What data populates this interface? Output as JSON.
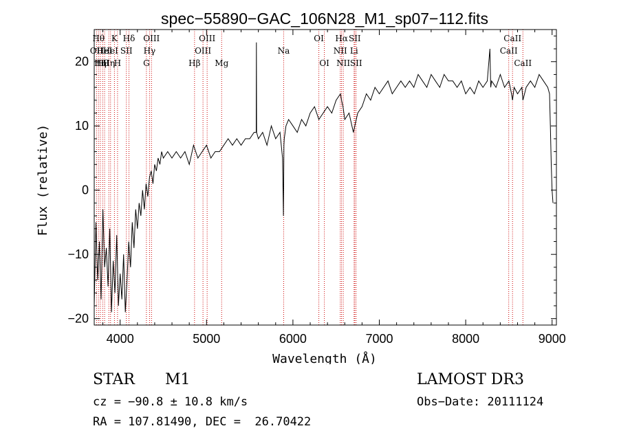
{
  "chart_data": {
    "type": "line",
    "title": "spec−55890−GAC_106N28_M1_sp07−112.fits",
    "xlabel": "Wavelength (Å)",
    "ylabel": "Flux (relative)",
    "xlim": [
      3700,
      9050
    ],
    "ylim": [
      -21,
      25
    ],
    "xticks": [
      4000,
      5000,
      6000,
      7000,
      8000,
      9000
    ],
    "xtick_labels": [
      "4000",
      "5000",
      "6000",
      "7000",
      "8000",
      "9000"
    ],
    "yticks": [
      -20,
      -10,
      0,
      10,
      20
    ],
    "ytick_labels": [
      "−20",
      "−10",
      "0",
      "10",
      "20"
    ],
    "series": [
      {
        "name": "flux",
        "x": [
          3700,
          3720,
          3740,
          3760,
          3780,
          3800,
          3820,
          3840,
          3860,
          3880,
          3900,
          3920,
          3940,
          3960,
          3980,
          4000,
          4020,
          4040,
          4060,
          4080,
          4100,
          4120,
          4140,
          4160,
          4180,
          4200,
          4220,
          4240,
          4260,
          4280,
          4300,
          4320,
          4340,
          4360,
          4380,
          4400,
          4420,
          4440,
          4460,
          4480,
          4500,
          4550,
          4600,
          4650,
          4700,
          4750,
          4800,
          4850,
          4900,
          4950,
          5000,
          5050,
          5100,
          5150,
          5200,
          5250,
          5300,
          5350,
          5400,
          5450,
          5500,
          5550,
          5575,
          5577,
          5580,
          5600,
          5650,
          5700,
          5750,
          5800,
          5850,
          5880,
          5890,
          5893,
          5896,
          5900,
          5920,
          5950,
          6000,
          6050,
          6100,
          6150,
          6200,
          6250,
          6300,
          6350,
          6400,
          6450,
          6500,
          6550,
          6563,
          6580,
          6600,
          6650,
          6700,
          6750,
          6800,
          6850,
          6900,
          6950,
          7000,
          7050,
          7100,
          7150,
          7200,
          7250,
          7300,
          7350,
          7400,
          7450,
          7500,
          7550,
          7600,
          7650,
          7700,
          7750,
          7800,
          7850,
          7900,
          7950,
          8000,
          8050,
          8100,
          8150,
          8200,
          8250,
          8280,
          8290,
          8300,
          8350,
          8400,
          8450,
          8500,
          8530,
          8542,
          8560,
          8600,
          8650,
          8662,
          8700,
          8750,
          8800,
          8850,
          8900,
          8950,
          8970,
          8980,
          8990,
          9000,
          9010
        ],
        "values": [
          -18,
          -5,
          -14,
          -8,
          -17,
          -3,
          -12,
          -9,
          -15,
          -6,
          -19,
          -11,
          -16,
          -7,
          -18,
          -13,
          -17,
          -10,
          -19,
          -14,
          -8,
          -12,
          -5,
          -9,
          -3,
          -6,
          -2,
          -4,
          0,
          -3,
          1,
          -1,
          2,
          3,
          1,
          4,
          3,
          5,
          4,
          6,
          5,
          6,
          5,
          6,
          5,
          6,
          4,
          7,
          5,
          6,
          7,
          5,
          6,
          6,
          7,
          8,
          7,
          8,
          7,
          8,
          8,
          9,
          9,
          23,
          9,
          8,
          9,
          7,
          10,
          8,
          9,
          5,
          -4,
          2,
          7,
          8,
          10,
          11,
          10,
          9,
          11,
          10,
          12,
          13,
          11,
          12,
          13,
          12,
          14,
          15,
          14,
          13,
          11,
          12,
          9,
          12,
          13,
          15,
          14,
          16,
          15,
          16,
          17,
          15,
          16,
          17,
          16,
          17,
          16,
          18,
          17,
          16,
          18,
          17,
          16,
          18,
          17,
          17,
          16,
          17,
          15,
          16,
          15,
          17,
          16,
          17,
          22,
          16,
          17,
          16,
          18,
          16,
          17,
          15,
          14,
          16,
          15,
          16,
          14,
          16,
          17,
          16,
          18,
          17,
          16,
          15,
          10,
          4,
          0,
          -2
        ]
      }
    ],
    "lines": [
      {
        "wave": 3727,
        "label": "OII",
        "row": 1
      },
      {
        "wave": 3750,
        "label": "Hθ",
        "row": 0
      },
      {
        "wave": 3771,
        "label": "Hη",
        "row": 2
      },
      {
        "wave": 3798,
        "label": "Hθ",
        "row": 2
      },
      {
        "wave": 3820,
        "label": "HeI",
        "row": 1
      },
      {
        "wave": 3869,
        "label": "Hη",
        "row": 2
      },
      {
        "wave": 3889,
        "label": "HeI",
        "row": 1
      },
      {
        "wave": 3934,
        "label": "K",
        "row": 0
      },
      {
        "wave": 3970,
        "label": "H",
        "row": 2
      },
      {
        "wave": 4072,
        "label": "SII",
        "row": 1
      },
      {
        "wave": 4102,
        "label": "Hδ",
        "row": 0
      },
      {
        "wave": 4304,
        "label": "G",
        "row": 2
      },
      {
        "wave": 4340,
        "label": "Hγ",
        "row": 1
      },
      {
        "wave": 4363,
        "label": "OIII",
        "row": 0
      },
      {
        "wave": 4861,
        "label": "Hβ",
        "row": 2
      },
      {
        "wave": 4959,
        "label": "OIII",
        "row": 1
      },
      {
        "wave": 5007,
        "label": "OIII",
        "row": 0
      },
      {
        "wave": 5175,
        "label": "Mg",
        "row": 2
      },
      {
        "wave": 5893,
        "label": "Na",
        "row": 1
      },
      {
        "wave": 6300,
        "label": "OI",
        "row": 0
      },
      {
        "wave": 6364,
        "label": "OI",
        "row": 2
      },
      {
        "wave": 6548,
        "label": "NII",
        "row": 1
      },
      {
        "wave": 6563,
        "label": "Hα",
        "row": 0
      },
      {
        "wave": 6583,
        "label": "NII",
        "row": 2
      },
      {
        "wave": 6708,
        "label": "Li",
        "row": 1
      },
      {
        "wave": 6716,
        "label": "SII",
        "row": 0
      },
      {
        "wave": 6731,
        "label": "SII",
        "row": 2
      },
      {
        "wave": 8498,
        "label": "CaII",
        "row": 1
      },
      {
        "wave": 8542,
        "label": "CaII",
        "row": 0
      },
      {
        "wave": 8662,
        "label": "CaII",
        "row": 2
      }
    ]
  },
  "info": {
    "obj_class": "STAR",
    "obj_subclass": "M1",
    "survey": "LAMOST DR3",
    "cz": "cz = −90.8 ± 10.8 km/s",
    "obs_date": "Obs−Date: 20111124",
    "radec": "RA = 107.81490, DEC =  26.70422"
  },
  "colors": {
    "spectrum": "#000000",
    "line_marker": "#cc0000",
    "axis": "#000000"
  }
}
